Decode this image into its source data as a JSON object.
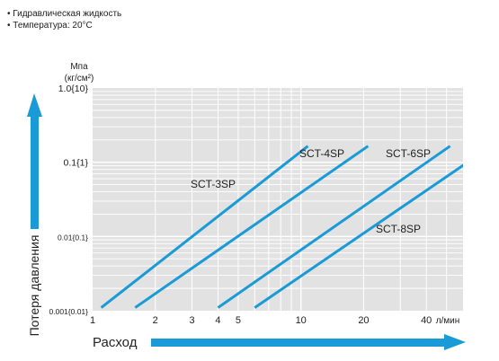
{
  "notes": [
    "• Гидравлическая жидкость",
    "• Температура: 20°C"
  ],
  "chart_data": {
    "type": "line",
    "x_scale": "log",
    "y_scale": "log",
    "xlim": [
      1,
      60
    ],
    "ylim": [
      0.001,
      1.0
    ],
    "x_ticks": [
      1,
      2,
      3,
      4,
      5,
      10,
      20,
      40
    ],
    "x_tick_labels": [
      "1",
      "2",
      "3",
      "4",
      "5",
      "10",
      "20",
      "40"
    ],
    "x_unit_label": "л/мин",
    "y_ticks": [
      0.001,
      0.01,
      0.1,
      1.0
    ],
    "y_tick_labels": [
      "0.001{0.01}",
      "0.01{0.1}",
      "0.1{1}",
      "1.0{10}"
    ],
    "y_unit_label_line1": "Мпа",
    "y_unit_label_line2": "(кг/см²)",
    "xlabel": "Расход",
    "ylabel": "Потеря давления",
    "grid": true,
    "series": [
      {
        "name": "SCT-3SP",
        "x": [
          1.1,
          10.8
        ],
        "y": [
          0.0011,
          0.165
        ]
      },
      {
        "name": "SCT-4SP",
        "x": [
          1.6,
          21.0
        ],
        "y": [
          0.0011,
          0.165
        ]
      },
      {
        "name": "SCT-6SP",
        "x": [
          4.0,
          52.0
        ],
        "y": [
          0.0011,
          0.165
        ]
      },
      {
        "name": "SCT-8SP",
        "x": [
          6.0,
          82.0
        ],
        "y": [
          0.0011,
          0.165
        ]
      }
    ]
  },
  "colors": {
    "line": "#1a9ad6",
    "plot_bg": "#e2e2e2",
    "grid": "#ffffff",
    "arrow": "#1a9ad6"
  }
}
